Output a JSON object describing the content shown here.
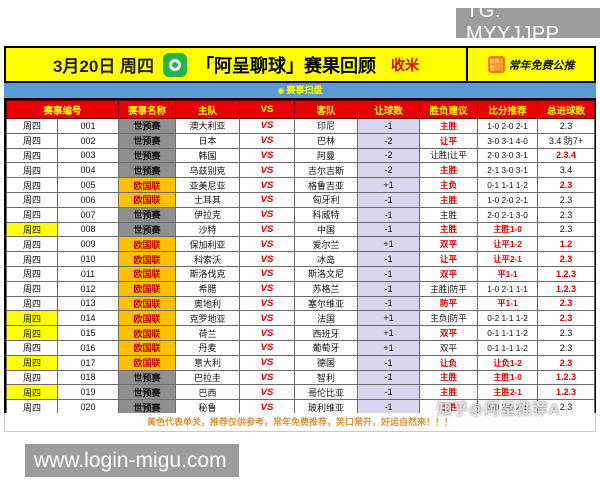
{
  "watermark_top": "TG: MYYJJPP",
  "banner": {
    "date": "3月20日 周四",
    "title": "「阿呈聊球」赛果回顾",
    "tag": "收米",
    "official_account_icon_label": "公众号",
    "official_account_text": "常年免费公推"
  },
  "subheader": {
    "icon": "scan-badge-icon",
    "label": "赛事扫盘"
  },
  "table": {
    "vs_label": "VS",
    "headers": [
      "赛事编号",
      "赛事名称",
      "主队",
      "VS",
      "客队",
      "让球数",
      "胜负建议",
      "比分推荐",
      "总进球数"
    ],
    "rows": [
      {
        "day": "周四",
        "day_highlight": false,
        "no": "001",
        "league": "世预赛",
        "league_type": "gray",
        "home": "澳大利亚",
        "away": "印尼",
        "handicap": "-1",
        "advice": "主胜",
        "advice_red": true,
        "score": "1-0 2-0 2-1",
        "score_red": false,
        "goals": "2.3",
        "goals_red": false
      },
      {
        "day": "周四",
        "day_highlight": false,
        "no": "002",
        "league": "世预赛",
        "league_type": "gray",
        "home": "日本",
        "away": "巴林",
        "handicap": "-2",
        "advice": "让平",
        "advice_red": true,
        "score": "3-0 3-1 4-0",
        "score_red": false,
        "goals": "3.4 防7+",
        "goals_red": false
      },
      {
        "day": "周四",
        "day_highlight": false,
        "no": "003",
        "league": "世预赛",
        "league_type": "gray",
        "home": "韩国",
        "away": "阿曼",
        "handicap": "-2",
        "advice": "让胜|让平",
        "advice_red": false,
        "score": "2-0 3-0 3-1",
        "score_red": false,
        "goals": "2.3.4",
        "goals_red": true
      },
      {
        "day": "周四",
        "day_highlight": false,
        "no": "004",
        "league": "世预赛",
        "league_type": "gray",
        "home": "乌兹别克",
        "away": "吉尔吉斯",
        "handicap": "-2",
        "advice": "主胜",
        "advice_red": true,
        "score": "2-1 3-0 3-1",
        "score_red": false,
        "goals": "3.4",
        "goals_red": false
      },
      {
        "day": "周四",
        "day_highlight": false,
        "no": "005",
        "league": "欧国联",
        "league_type": "orange",
        "home": "亚美尼亚",
        "away": "格鲁吉亚",
        "handicap": "+1",
        "advice": "主负",
        "advice_red": true,
        "score": "0-1 1-1 1-2",
        "score_red": false,
        "goals": "2.3",
        "goals_red": true
      },
      {
        "day": "周四",
        "day_highlight": false,
        "no": "006",
        "league": "欧国联",
        "league_type": "orange",
        "home": "土耳其",
        "away": "匈牙利",
        "handicap": "-1",
        "advice": "主胜",
        "advice_red": true,
        "score": "1-0 2-0 2-1",
        "score_red": false,
        "goals": "2.3",
        "goals_red": false
      },
      {
        "day": "周四",
        "day_highlight": false,
        "no": "007",
        "league": "世预赛",
        "league_type": "gray",
        "home": "伊拉克",
        "away": "科威特",
        "handicap": "-1",
        "advice": "主胜",
        "advice_red": false,
        "score": "2-0 2-1 3-0",
        "score_red": false,
        "goals": "2.3",
        "goals_red": false
      },
      {
        "day": "周四",
        "day_highlight": true,
        "no": "008",
        "league": "世预赛",
        "league_type": "gray",
        "home": "沙特",
        "away": "中国",
        "handicap": "-1",
        "advice": "主胜",
        "advice_red": true,
        "score": "主胜1-0",
        "score_red": true,
        "goals": "2.3",
        "goals_red": false
      },
      {
        "day": "周四",
        "day_highlight": false,
        "no": "009",
        "league": "欧国联",
        "league_type": "orange",
        "home": "保加利亚",
        "away": "爱尔兰",
        "handicap": "+1",
        "advice": "双平",
        "advice_red": true,
        "score": "让平1-2",
        "score_red": true,
        "goals": "1.2",
        "goals_red": true
      },
      {
        "day": "周四",
        "day_highlight": false,
        "no": "010",
        "league": "欧国联",
        "league_type": "orange",
        "home": "科索沃",
        "away": "冰岛",
        "handicap": "-1",
        "advice": "让平",
        "advice_red": true,
        "score": "让平2-1",
        "score_red": true,
        "goals": "2.3",
        "goals_red": true
      },
      {
        "day": "周四",
        "day_highlight": false,
        "no": "011",
        "league": "欧国联",
        "league_type": "orange",
        "home": "斯洛伐克",
        "away": "斯洛文尼",
        "handicap": "-1",
        "advice": "双平",
        "advice_red": true,
        "score": "平1-1",
        "score_red": true,
        "goals": "1.2.3",
        "goals_red": true
      },
      {
        "day": "周四",
        "day_highlight": false,
        "no": "012",
        "league": "欧国联",
        "league_type": "orange",
        "home": "希腊",
        "away": "苏格兰",
        "handicap": "-1",
        "advice": "主胜|防平",
        "advice_red": false,
        "score": "1-0 2-1 1-1",
        "score_red": false,
        "goals": "1.2.3",
        "goals_red": true
      },
      {
        "day": "周四",
        "day_highlight": false,
        "no": "013",
        "league": "欧国联",
        "league_type": "orange",
        "home": "奥地利",
        "away": "塞尔维亚",
        "handicap": "-1",
        "advice": "防平",
        "advice_red": true,
        "score": "平1-1",
        "score_red": true,
        "goals": "2.3",
        "goals_red": true
      },
      {
        "day": "周四",
        "day_highlight": true,
        "no": "014",
        "league": "欧国联",
        "league_type": "orange",
        "home": "克罗地亚",
        "away": "法国",
        "handicap": "+1",
        "advice": "主负|防平",
        "advice_red": false,
        "score": "0-2 1-1 1-2",
        "score_red": false,
        "goals": "2.3",
        "goals_red": true
      },
      {
        "day": "周四",
        "day_highlight": true,
        "no": "015",
        "league": "欧国联",
        "league_type": "orange",
        "home": "荷兰",
        "away": "西班牙",
        "handicap": "+1",
        "advice": "双平",
        "advice_red": true,
        "score": "0-1 1-1 1-2",
        "score_red": false,
        "goals": "2.3",
        "goals_red": false
      },
      {
        "day": "周四",
        "day_highlight": false,
        "no": "016",
        "league": "欧国联",
        "league_type": "orange",
        "home": "丹麦",
        "away": "葡萄牙",
        "handicap": "+1",
        "advice": "双平",
        "advice_red": false,
        "score": "0-1 1-1 1-2",
        "score_red": false,
        "goals": "2.3",
        "goals_red": false
      },
      {
        "day": "周四",
        "day_highlight": true,
        "no": "017",
        "league": "欧国联",
        "league_type": "orange",
        "home": "意大利",
        "away": "德国",
        "handicap": "-1",
        "advice": "让负",
        "advice_red": true,
        "score": "让负1-2",
        "score_red": true,
        "goals": "2.3",
        "goals_red": true
      },
      {
        "day": "周四",
        "day_highlight": false,
        "no": "018",
        "league": "世预赛",
        "league_type": "gray",
        "home": "巴拉圭",
        "away": "智利",
        "handicap": "-1",
        "advice": "主胜",
        "advice_red": true,
        "score": "主胜1-0",
        "score_red": true,
        "goals": "1.2.3",
        "goals_red": true
      },
      {
        "day": "周四",
        "day_highlight": true,
        "no": "019",
        "league": "世预赛",
        "league_type": "gray",
        "home": "巴西",
        "away": "哥伦比亚",
        "handicap": "-1",
        "advice": "主胜",
        "advice_red": true,
        "score": "主胜2-1",
        "score_red": true,
        "goals": "1.2.3",
        "goals_red": true
      },
      {
        "day": "周四",
        "day_highlight": false,
        "no": "020",
        "league": "世预赛",
        "league_type": "gray",
        "home": "秘鲁",
        "away": "玻利维亚",
        "handicap": "-1",
        "advice": "主胜",
        "advice_red": true,
        "score": "1-0 2-0 2-1",
        "score_red": false,
        "goals": "2.3",
        "goals_red": false
      }
    ]
  },
  "footer_note": "黄色代表单关，推荐仅供参考，常年免费推荐，笑口常开，好运自然来！！！",
  "watermark_right": "知乎@阿呈推荐A",
  "watermark_bottom": "www.login-migu.com",
  "colors": {
    "banner_yellow": "#ffff00",
    "scan_bar_blue": "#5b9bd5",
    "header_red": "#e60000",
    "header_text_yellow": "#ffff00",
    "league_gray": "#8f8f8f",
    "league_orange": "#ffc000",
    "handicap_lavender": "#dbd6f0",
    "highlight_yellow": "#ffff00",
    "accent_red": "#e00000",
    "app_icon_green": "#27b24b",
    "official_icon_orange": "#f59a23",
    "watermark_gray": "#9c9c9c",
    "footnote_orange": "#d9953b"
  }
}
